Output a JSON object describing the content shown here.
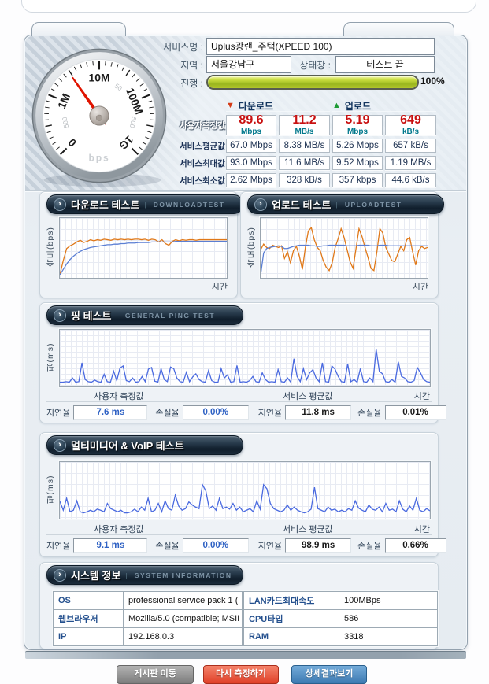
{
  "form": {
    "service_label": "서비스명 :",
    "service_value": "Uplus광랜_주택(XPEED 100)",
    "region_label": "지역 :",
    "region_value": "서울강남구",
    "status_label": "상태창 :",
    "status_value": "테스트 끝",
    "progress_label": "진행 :",
    "progress_text": "100%",
    "progress_percent": 100
  },
  "gauge": {
    "unit": "bps",
    "major_labels": [
      "0",
      "1M",
      "10M",
      "100M",
      "1G"
    ],
    "minor_labels": [
      "500",
      "50",
      "500"
    ],
    "needle_deg": -35
  },
  "stats": {
    "download_header": "다운로드",
    "upload_header": "업로드",
    "download_marker": "▼",
    "upload_marker": "▲",
    "row_labels": [
      "사용자측정값",
      "서비스평균값",
      "서비스최대값",
      "서비스최소값"
    ],
    "user_values": [
      {
        "value": "89.6",
        "unit": "Mbps"
      },
      {
        "value": "11.2",
        "unit": "MB/s"
      },
      {
        "value": "5.19",
        "unit": "Mbps"
      },
      {
        "value": "649",
        "unit": "kB/s"
      }
    ],
    "avg_values": [
      "67.0 Mbps",
      "8.38 MB/s",
      "5.26 Mbps",
      "657 kB/s"
    ],
    "max_values": [
      "93.0 Mbps",
      "11.6 MB/s",
      "9.52 Mbps",
      "1.19 MB/s"
    ],
    "min_values": [
      "2.62 Mbps",
      "328 kB/s",
      "357 kbps",
      "44.6 kB/s"
    ]
  },
  "download_panel": {
    "title": "다운로드 테스트",
    "subtitle": "DOWNLOADTEST",
    "ylabel": "속도(bps)",
    "xlabel": "시간"
  },
  "upload_panel": {
    "title": "업로드 테스트",
    "subtitle": "UPLOADTEST",
    "ylabel": "속도(bps)",
    "xlabel": "시간"
  },
  "ping_panel": {
    "title": "핑 테스트",
    "subtitle": "GENERAL PING TEST",
    "ylabel": "핑(ms)",
    "xlabel": "시간",
    "user_heading": "사용자 측정값",
    "service_heading": "서비스 평균값",
    "delay_label": "지연율",
    "loss_label": "손실율",
    "user_delay": "7.6 ms",
    "user_loss": "0.00%",
    "service_delay": "11.8 ms",
    "service_loss": "0.01%"
  },
  "voip_panel": {
    "title": "멀티미디어 & VoIP 테스트",
    "ylabel": "핑(ms)",
    "xlabel": "시간",
    "user_heading": "사용자 측정값",
    "service_heading": "서비스 평균값",
    "delay_label": "지연율",
    "loss_label": "손실율",
    "user_delay": "9.1 ms",
    "user_loss": "0.00%",
    "service_delay": "98.9 ms",
    "service_loss": "0.66%"
  },
  "system_panel": {
    "title": "시스템 정보",
    "subtitle": "SYSTEM INFORMATION",
    "left_rows": [
      {
        "label": "OS",
        "value": "professional service pack 1 ("
      },
      {
        "label": "웹브라우저",
        "value": "Mozilla/5.0 (compatible; MSII"
      },
      {
        "label": "IP",
        "value": "192.168.0.3"
      }
    ],
    "right_rows": [
      {
        "label": "LAN카드최대속도",
        "value": "100MBps"
      },
      {
        "label": "CPU타입",
        "value": "586"
      },
      {
        "label": "RAM",
        "value": "3318"
      }
    ]
  },
  "buttons": {
    "board": "게시판 이동",
    "retest": "다시 측정하기",
    "detail": "상세결과보기"
  },
  "colors": {
    "accent_red": "#c81010",
    "unit_teal": "#00788c",
    "user_blue": "#2f62c4",
    "progress_green": "#9ab61e",
    "header_navy": "#16293a",
    "orange_series": "#e07818",
    "blue_series": "#5b7fd4",
    "spike_blue": "#4a6ae0"
  },
  "chart_data": [
    {
      "id": "download",
      "type": "line",
      "title": "다운로드 테스트",
      "xlabel": "시간",
      "ylabel": "속도(bps)",
      "grid": true,
      "legend": "none",
      "ylim_note": "normalized 0-1 of plot height",
      "series": [
        {
          "name": "사용자 측정",
          "color": "#e07818",
          "values": [
            0.02,
            0.28,
            0.5,
            0.55,
            0.58,
            0.62,
            0.65,
            0.61,
            0.63,
            0.66,
            0.64,
            0.66,
            0.65,
            0.67,
            0.66,
            0.65,
            0.67,
            0.66,
            0.67,
            0.66,
            0.67,
            0.66,
            0.67,
            0.67,
            0.66,
            0.67,
            0.65,
            0.67,
            0.66,
            0.62,
            0.66,
            0.59,
            0.56,
            0.63,
            0.66,
            0.64,
            0.66,
            0.65,
            0.66,
            0.66,
            0.65,
            0.66,
            0.66,
            0.66,
            0.66,
            0.66,
            0.66,
            0.66,
            0.66,
            0.66
          ]
        },
        {
          "name": "서비스 평균",
          "color": "#5b7fd4",
          "values": [
            0.02,
            0.12,
            0.22,
            0.3,
            0.36,
            0.41,
            0.45,
            0.48,
            0.5,
            0.52,
            0.53,
            0.54,
            0.55,
            0.56,
            0.57,
            0.57,
            0.58,
            0.58,
            0.59,
            0.59,
            0.6,
            0.6,
            0.6,
            0.61,
            0.61,
            0.61,
            0.61,
            0.62,
            0.62,
            0.62,
            0.62,
            0.62,
            0.62,
            0.62,
            0.63,
            0.63,
            0.63,
            0.63,
            0.63,
            0.63,
            0.63,
            0.63,
            0.63,
            0.63,
            0.63,
            0.63,
            0.63,
            0.63,
            0.63,
            0.63
          ]
        }
      ]
    },
    {
      "id": "upload",
      "type": "line",
      "title": "업로드 테스트",
      "xlabel": "시간",
      "ylabel": "속도(bps)",
      "grid": true,
      "legend": "none",
      "series": [
        {
          "name": "사용자 측정",
          "color": "#e07818",
          "values": [
            0.48,
            0.58,
            0.52,
            0.5,
            0.56,
            0.54,
            0.52,
            0.55,
            0.32,
            0.44,
            0.24,
            0.46,
            0.54,
            0.36,
            0.12,
            0.52,
            0.82,
            0.88,
            0.66,
            0.52,
            0.46,
            0.28,
            0.16,
            0.1,
            0.24,
            0.52,
            0.68,
            0.86,
            0.7,
            0.48,
            0.26,
            0.14,
            0.5,
            0.86,
            0.72,
            0.52,
            0.34,
            0.14,
            0.1,
            0.44,
            0.86,
            0.78,
            0.52,
            0.4,
            0.28,
            0.26,
            0.4,
            0.54,
            0.46,
            0.66,
            0.7,
            0.44,
            0.2,
            0.46,
            0.54,
            0.5,
            0.52
          ]
        },
        {
          "name": "서비스 평균",
          "color": "#5b7fd4",
          "values": [
            0.02,
            0.42,
            0.5,
            0.52,
            0.53,
            0.54,
            0.55,
            0.54,
            0.5,
            0.5,
            0.52,
            0.54,
            0.55,
            0.56,
            0.56,
            0.56,
            0.56,
            0.55,
            0.55,
            0.54,
            0.54,
            0.55,
            0.55,
            0.56,
            0.56,
            0.56,
            0.56,
            0.56,
            0.56,
            0.55,
            0.55,
            0.55,
            0.55,
            0.56,
            0.56,
            0.56,
            0.56,
            0.55,
            0.55,
            0.55,
            0.56,
            0.56,
            0.56,
            0.55,
            0.55,
            0.55,
            0.55,
            0.55,
            0.55,
            0.55,
            0.55,
            0.55,
            0.55,
            0.55,
            0.55,
            0.55,
            0.55
          ]
        }
      ]
    },
    {
      "id": "ping",
      "type": "line",
      "title": "핑 테스트",
      "xlabel": "시간",
      "ylabel": "핑(ms)",
      "grid": true,
      "legend": "none",
      "series": [
        {
          "name": "핑",
          "color": "#4a6ae0",
          "values": [
            0.05,
            0.05,
            0.06,
            0.05,
            0.13,
            0.05,
            0.06,
            0.42,
            0.1,
            0.06,
            0.05,
            0.09,
            0.06,
            0.05,
            0.2,
            0.06,
            0.05,
            0.26,
            0.08,
            0.32,
            0.36,
            0.08,
            0.06,
            0.13,
            0.05,
            0.06,
            0.16,
            0.06,
            0.3,
            0.33,
            0.07,
            0.05,
            0.31,
            0.1,
            0.06,
            0.34,
            0.31,
            0.13,
            0.06,
            0.05,
            0.24,
            0.06,
            0.15,
            0.21,
            0.1,
            0.06,
            0.05,
            0.27,
            0.08,
            0.05,
            0.05,
            0.31,
            0.13,
            0.19,
            0.05,
            0.06,
            0.37,
            0.05,
            0.06,
            0.05,
            0.08,
            0.16,
            0.06,
            0.05,
            0.23,
            0.1,
            0.05,
            0.06,
            0.05,
            0.29,
            0.06,
            0.05,
            0.13,
            0.05,
            0.5,
            0.16,
            0.06,
            0.31,
            0.1,
            0.23,
            0.29,
            0.13,
            0.06,
            0.42,
            0.06,
            0.05,
            0.36,
            0.3,
            0.16,
            0.06,
            0.05,
            0.4,
            0.06,
            0.1,
            0.05,
            0.31,
            0.06,
            0.05,
            0.13,
            0.06,
            0.68,
            0.26,
            0.21,
            0.06,
            0.05,
            0.1,
            0.05,
            0.44,
            0.16,
            0.13,
            0.06,
            0.05,
            0.08,
            0.33,
            0.23,
            0.1,
            0.06,
            0.05
          ]
        }
      ]
    },
    {
      "id": "voip",
      "type": "line",
      "title": "멀티미디어 & VoIP 테스트",
      "xlabel": "시간",
      "ylabel": "핑(ms)",
      "grid": true,
      "legend": "none",
      "series": [
        {
          "name": "핑",
          "color": "#4a6ae0",
          "values": [
            0.3,
            0.13,
            0.36,
            0.1,
            0.13,
            0.31,
            0.1,
            0.08,
            0.1,
            0.13,
            0.1,
            0.15,
            0.13,
            0.1,
            0.26,
            0.16,
            0.13,
            0.1,
            0.13,
            0.08,
            0.08,
            0.1,
            0.15,
            0.1,
            0.19,
            0.13,
            0.36,
            0.1,
            0.13,
            0.26,
            0.1,
            0.31,
            0.16,
            0.13,
            0.42,
            0.21,
            0.13,
            0.16,
            0.29,
            0.23,
            0.19,
            0.16,
            0.62,
            0.5,
            0.16,
            0.21,
            0.13,
            0.36,
            0.16,
            0.19,
            0.15,
            0.26,
            0.13,
            0.19,
            0.1,
            0.13,
            0.16,
            0.1,
            0.31,
            0.15,
            0.62,
            0.54,
            0.26,
            0.16,
            0.13,
            0.1,
            0.13,
            0.23,
            0.13,
            0.19,
            0.13,
            0.1,
            0.08,
            0.1,
            0.15,
            0.57,
            0.16,
            0.13,
            0.1,
            0.19,
            0.13,
            0.15,
            0.1,
            0.13,
            0.1,
            0.16,
            0.13,
            0.31,
            0.17,
            0.13,
            0.1,
            0.23,
            0.15,
            0.13,
            0.19,
            0.1,
            0.26,
            0.13,
            0.15,
            0.1,
            0.31,
            0.15,
            0.1,
            0.21,
            0.13,
            0.36,
            0.13,
            0.1,
            0.16,
            0.12
          ]
        }
      ]
    }
  ]
}
